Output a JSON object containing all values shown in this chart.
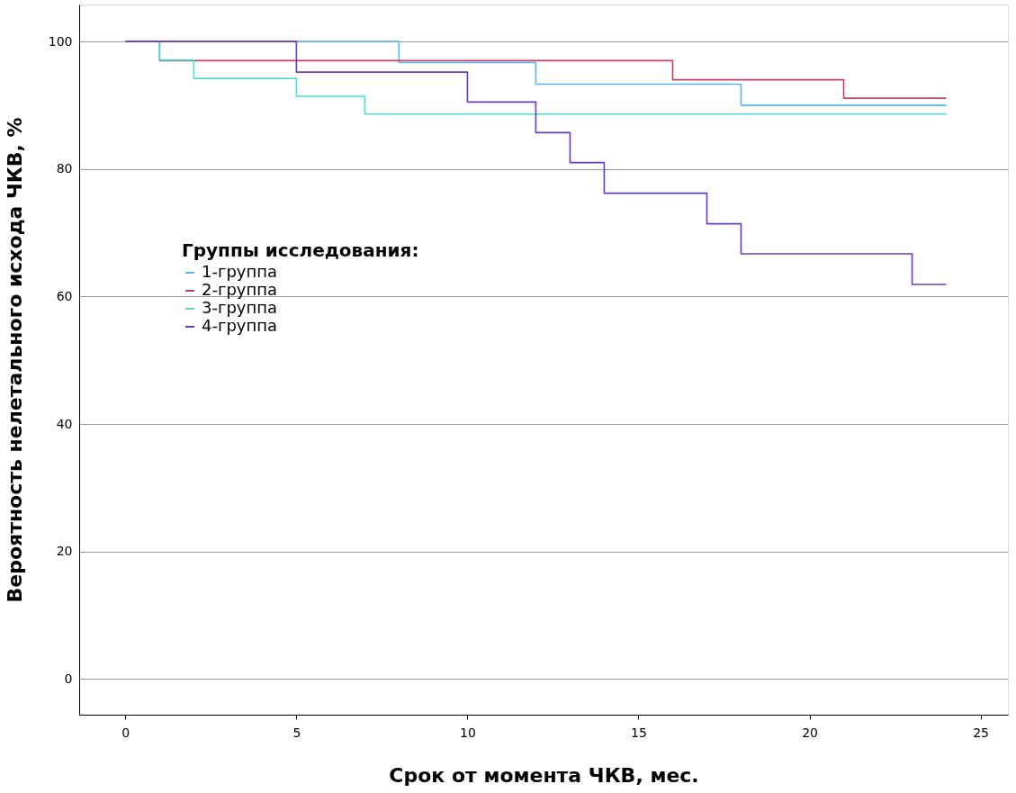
{
  "chart_data": {
    "type": "step",
    "xlabel": "Срок от момента ЧКВ, мес.",
    "ylabel": "Вероятность нелетального исхода ЧКВ, %",
    "legend_title": "Группы исследования:",
    "legend": "left",
    "grid": "y",
    "line_style": "solid",
    "marker": "none",
    "xlim": [
      -1.35,
      25.8
    ],
    "ylim": [
      -5.6,
      105.8
    ],
    "xticks": [
      0,
      5,
      10,
      15,
      20,
      25
    ],
    "yticks": [
      0,
      20,
      40,
      60,
      80,
      100
    ],
    "series": [
      {
        "name": "1-группа",
        "color": "#5ab4f0",
        "x": [
          0,
          8,
          12,
          18,
          24
        ],
        "values": [
          100,
          96.7,
          93.3,
          90.0,
          90.0
        ]
      },
      {
        "name": "2-группа",
        "color": "#c2416b",
        "x": [
          0,
          1,
          16,
          21,
          24
        ],
        "values": [
          100,
          97.0,
          94.0,
          91.1,
          91.1
        ]
      },
      {
        "name": "3-группа",
        "color": "#4fdbd6",
        "x": [
          0,
          1,
          2,
          5,
          7,
          24
        ],
        "values": [
          100,
          97.1,
          94.2,
          91.4,
          88.6,
          88.6
        ]
      },
      {
        "name": "4-группа",
        "color": "#6a3cb8",
        "x": [
          0,
          5,
          10,
          12,
          13,
          14,
          17,
          18,
          23,
          24
        ],
        "values": [
          100,
          95.2,
          90.5,
          85.7,
          81.0,
          76.2,
          71.4,
          66.7,
          61.9,
          61.9
        ]
      }
    ]
  }
}
